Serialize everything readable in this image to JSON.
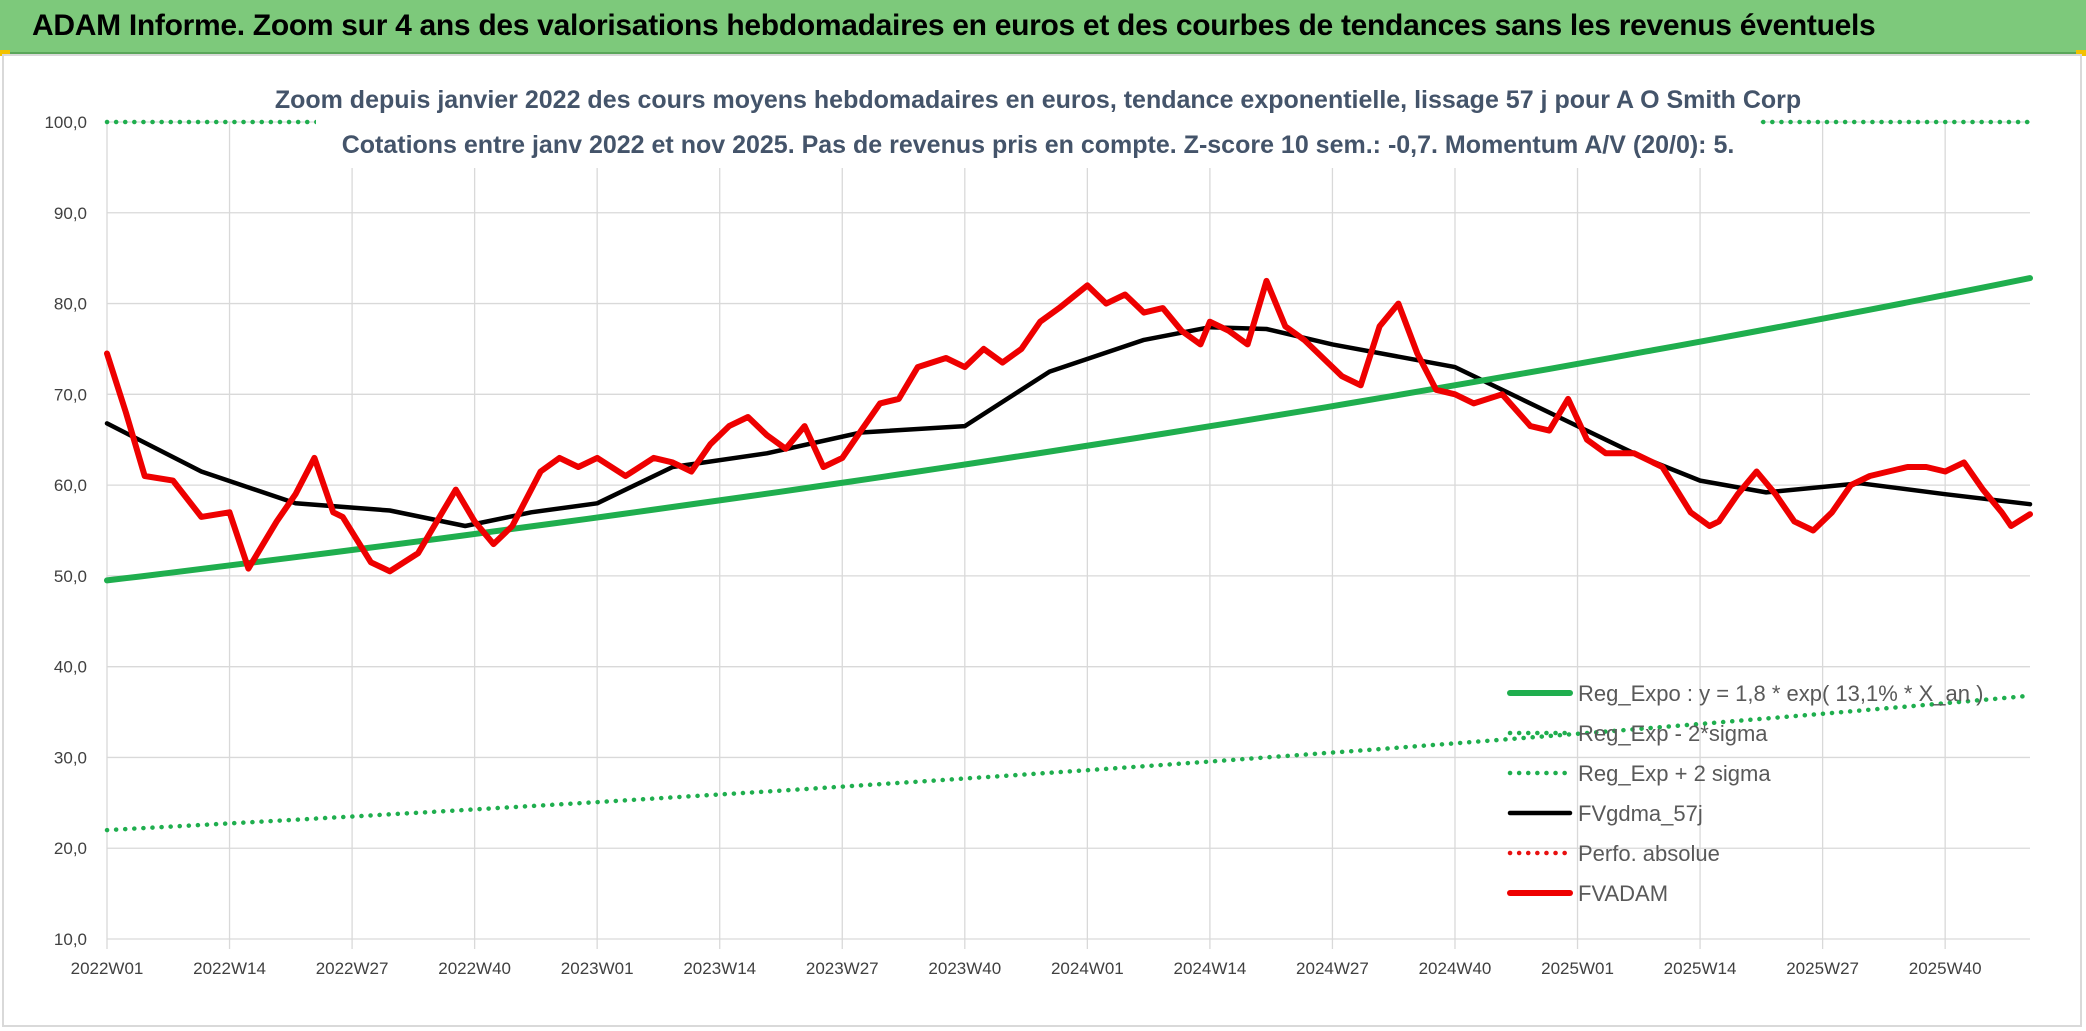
{
  "header": {
    "title": "ADAM Informe. Zoom sur 4 ans des valorisations hebdomadaires en euros et des courbes de tendances sans les revenus éventuels"
  },
  "colors": {
    "banner": "#7dc97b",
    "expo": "#1fae4e",
    "sigma": "#1fae4e",
    "fv": "#000000",
    "perf": "#e81010",
    "adam": "#ee0000",
    "grid": "#d9d9d9"
  },
  "chart_data": {
    "type": "line",
    "title": "Zoom depuis janvier 2022 des cours moyens hebdomadaires en euros, tendance exponentielle, lissage 57 j pour A O Smith Corp",
    "subtitle": "Cotations entre janv 2022 et nov 2025. Pas de revenus pris en compte. Z-score 10 sem.: -0,7. Momentum A/V (20/0): 5.",
    "xlabel": "",
    "ylabel": "",
    "ylim": [
      10,
      100
    ],
    "yticks": [
      100,
      90,
      80,
      70,
      60,
      50,
      40,
      30,
      20,
      10
    ],
    "ytick_labels": [
      "100,0",
      "90,0",
      "80,0",
      "70,0",
      "60,0",
      "50,0",
      "40,0",
      "30,0",
      "20,0",
      "10,0"
    ],
    "x_range_weeks": [
      0,
      204
    ],
    "xticks": [
      0,
      13,
      26,
      39,
      52,
      65,
      78,
      91,
      104,
      117,
      130,
      143,
      156,
      169,
      182,
      195
    ],
    "xtick_labels": [
      "2022W01",
      "2022W14",
      "2022W27",
      "2022W40",
      "2023W01",
      "2023W14",
      "2023W27",
      "2023W40",
      "2024W01",
      "2024W14",
      "2024W27",
      "2024W40",
      "2025W01",
      "2025W14",
      "2025W27",
      "2025W40"
    ],
    "grid": true,
    "legend_position": "bottom-right",
    "series": [
      {
        "name": "Reg_Expo : y = 1,8 * exp( 13,1% * X_an )",
        "style": "solid-thick",
        "color": "#1fae4e",
        "x": [
          0,
          204
        ],
        "values": [
          49.5,
          82.8
        ]
      },
      {
        "name": "Reg_Exp - 2*sigma",
        "style": "dotted",
        "color": "#1fae4e",
        "x": [
          0,
          204
        ],
        "values": [
          22.0,
          36.8
        ]
      },
      {
        "name": "Reg_Exp + 2 sigma",
        "style": "dotted",
        "color": "#1fae4e",
        "x": [
          0,
          204
        ],
        "values": [
          100.0,
          100.0
        ]
      },
      {
        "name": "FVgdma_57j",
        "style": "solid",
        "color": "#000000",
        "x": [
          0,
          10,
          20,
          30,
          38,
          45,
          52,
          60,
          70,
          80,
          91,
          100,
          110,
          117,
          123,
          130,
          143,
          150,
          156,
          163,
          169,
          176,
          186,
          195,
          204
        ],
        "values": [
          66.8,
          61.5,
          58.0,
          57.2,
          55.5,
          57.0,
          58.0,
          62.0,
          63.5,
          65.8,
          66.5,
          72.5,
          76.0,
          77.4,
          77.2,
          75.5,
          73.0,
          69.5,
          66.5,
          63.0,
          60.5,
          59.2,
          60.2,
          59.0,
          57.9
        ]
      },
      {
        "name": "Perfo. absolue",
        "style": "dotted",
        "color": "#e81010",
        "x": [],
        "values": []
      },
      {
        "name": "FVADAM",
        "style": "solid-thick",
        "color": "#ee0000",
        "x": [
          0,
          2,
          4,
          7,
          10,
          13,
          15,
          18,
          20,
          22,
          24,
          25,
          28,
          30,
          33,
          35,
          37,
          39,
          41,
          43,
          46,
          48,
          50,
          52,
          55,
          58,
          60,
          62,
          64,
          66,
          68,
          70,
          72,
          74,
          76,
          78,
          80,
          82,
          84,
          86,
          89,
          91,
          93,
          95,
          97,
          99,
          101,
          104,
          106,
          108,
          110,
          112,
          114,
          116,
          117,
          119,
          121,
          123,
          125,
          127,
          129,
          131,
          133,
          135,
          137,
          139,
          141,
          143,
          145,
          148,
          151,
          153,
          155,
          157,
          159,
          162,
          165,
          168,
          170,
          171,
          173,
          175,
          177,
          179,
          181,
          183,
          185,
          187,
          189,
          191,
          193,
          195,
          197,
          199,
          201,
          202,
          204
        ],
        "values": [
          74.5,
          68.0,
          61.0,
          60.5,
          56.5,
          57.0,
          50.8,
          56.0,
          59.0,
          63.0,
          57.0,
          56.5,
          51.5,
          50.5,
          52.5,
          56.0,
          59.5,
          56.0,
          53.5,
          55.5,
          61.5,
          63.0,
          62.0,
          63.0,
          61.0,
          63.0,
          62.5,
          61.5,
          64.5,
          66.5,
          67.5,
          65.5,
          64.0,
          66.5,
          62.0,
          63.0,
          66.0,
          69.0,
          69.5,
          73.0,
          74.0,
          73.0,
          75.0,
          73.5,
          75.0,
          78.0,
          79.5,
          82.0,
          80.0,
          81.0,
          79.0,
          79.5,
          77.0,
          75.5,
          78.0,
          77.0,
          75.5,
          82.5,
          77.5,
          76.0,
          74.0,
          72.0,
          71.0,
          77.5,
          80.0,
          74.5,
          70.5,
          70.0,
          69.0,
          70.0,
          66.5,
          66.0,
          69.5,
          65.0,
          63.5,
          63.5,
          62.0,
          57.0,
          55.5,
          56.0,
          59.0,
          61.5,
          59.0,
          56.0,
          55.0,
          57.0,
          60.0,
          61.0,
          61.5,
          62.0,
          62.0,
          61.5,
          62.5,
          59.5,
          57.0,
          55.5,
          56.8
        ]
      }
    ]
  }
}
